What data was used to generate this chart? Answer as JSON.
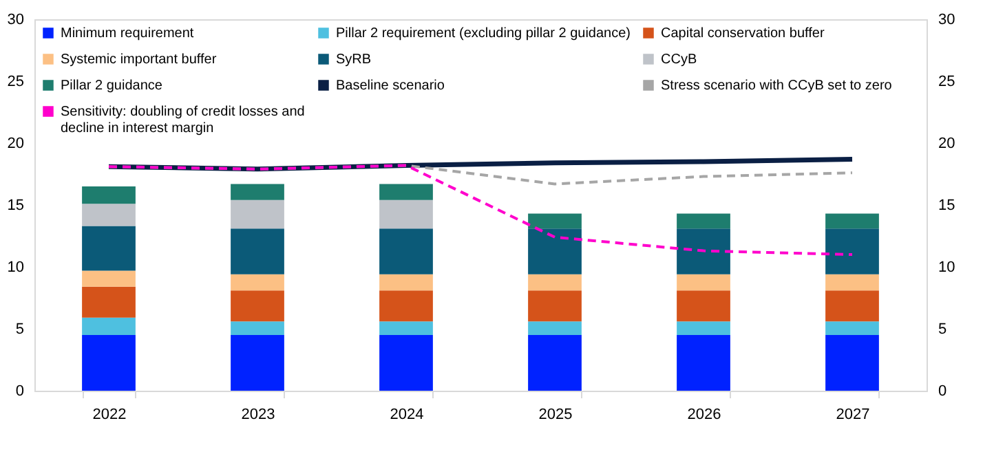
{
  "chart_data": {
    "type": "bar",
    "stacked": true,
    "legend": "top",
    "grid": false,
    "categories": [
      "2022",
      "2023",
      "2024",
      "2025",
      "2026",
      "2027"
    ],
    "ylim": [
      0,
      30
    ],
    "yticks": [
      0,
      5,
      10,
      15,
      20,
      25,
      30
    ],
    "y2lim": [
      0,
      30
    ],
    "y2ticks": [
      0,
      5,
      10,
      15,
      20,
      25,
      30
    ],
    "series": [
      {
        "name": "Minimum requirement",
        "color": "#0022ff",
        "values": [
          4.5,
          4.5,
          4.5,
          4.5,
          4.5,
          4.5
        ]
      },
      {
        "name": "Pillar 2 requirement (excluding pillar 2 guidance)",
        "color": "#4ec0e0",
        "values": [
          1.4,
          1.1,
          1.1,
          1.1,
          1.1,
          1.1
        ]
      },
      {
        "name": "Capital conservation buffer",
        "color": "#d5531a",
        "values": [
          2.5,
          2.5,
          2.5,
          2.5,
          2.5,
          2.5
        ]
      },
      {
        "name": "Systemic important buffer",
        "color": "#fcc084",
        "values": [
          1.3,
          1.3,
          1.3,
          1.3,
          1.3,
          1.3
        ]
      },
      {
        "name": "SyRB",
        "color": "#0b5a78",
        "values": [
          3.6,
          3.7,
          3.7,
          3.7,
          3.7,
          3.7
        ]
      },
      {
        "name": "CCyB",
        "color": "#bfc3c9",
        "values": [
          1.8,
          2.3,
          2.3,
          0,
          0,
          0
        ]
      },
      {
        "name": "Pillar 2 guidance",
        "color": "#1e7d6e",
        "values": [
          1.4,
          1.3,
          1.3,
          1.2,
          1.2,
          1.2
        ]
      },
      {
        "name": "Baseline scenario",
        "type": "line",
        "axis": "y2",
        "line_style": "solid",
        "color": "#0a1f44",
        "values": [
          18.1,
          17.9,
          18.2,
          18.4,
          18.5,
          18.7
        ]
      },
      {
        "name": "Stress scenario with CCyB set to zero",
        "type": "line",
        "axis": "y2",
        "line_style": "dashed",
        "color": "#a6a6a6",
        "values": [
          18.1,
          17.9,
          18.2,
          16.7,
          17.3,
          17.6
        ]
      },
      {
        "name": "Sensitivity: doubling of credit losses and decline in interest margin",
        "type": "line",
        "axis": "y2",
        "line_style": "dashed",
        "color": "#ff00cc",
        "values": [
          18.1,
          17.9,
          18.2,
          12.4,
          11.3,
          11.0
        ]
      }
    ]
  }
}
